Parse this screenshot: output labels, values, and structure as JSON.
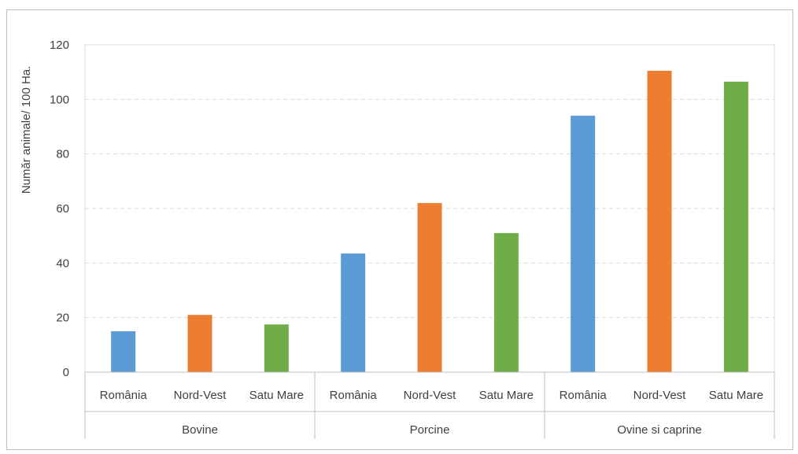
{
  "chart_data": {
    "type": "bar",
    "ylabel": "Număr animale/ 100 Ha.",
    "ylim": [
      0,
      120
    ],
    "yticks": [
      0,
      20,
      40,
      60,
      80,
      100,
      120
    ],
    "grid": true,
    "groups": [
      {
        "name": "Bovine",
        "bars": [
          {
            "label": "România",
            "value": 15,
            "color": "#5b9bd5"
          },
          {
            "label": "Nord-Vest",
            "value": 21,
            "color": "#ed7d31"
          },
          {
            "label": "Satu Mare",
            "value": 17.5,
            "color": "#70ad47"
          }
        ]
      },
      {
        "name": "Porcine",
        "bars": [
          {
            "label": "România",
            "value": 43.5,
            "color": "#5b9bd5"
          },
          {
            "label": "Nord-Vest",
            "value": 62,
            "color": "#ed7d31"
          },
          {
            "label": "Satu Mare",
            "value": 51,
            "color": "#70ad47"
          }
        ]
      },
      {
        "name": "Ovine si caprine",
        "bars": [
          {
            "label": "România",
            "value": 94,
            "color": "#5b9bd5"
          },
          {
            "label": "Nord-Vest",
            "value": 110.5,
            "color": "#ed7d31"
          },
          {
            "label": "Satu Mare",
            "value": 106.5,
            "color": "#70ad47"
          }
        ]
      }
    ]
  }
}
